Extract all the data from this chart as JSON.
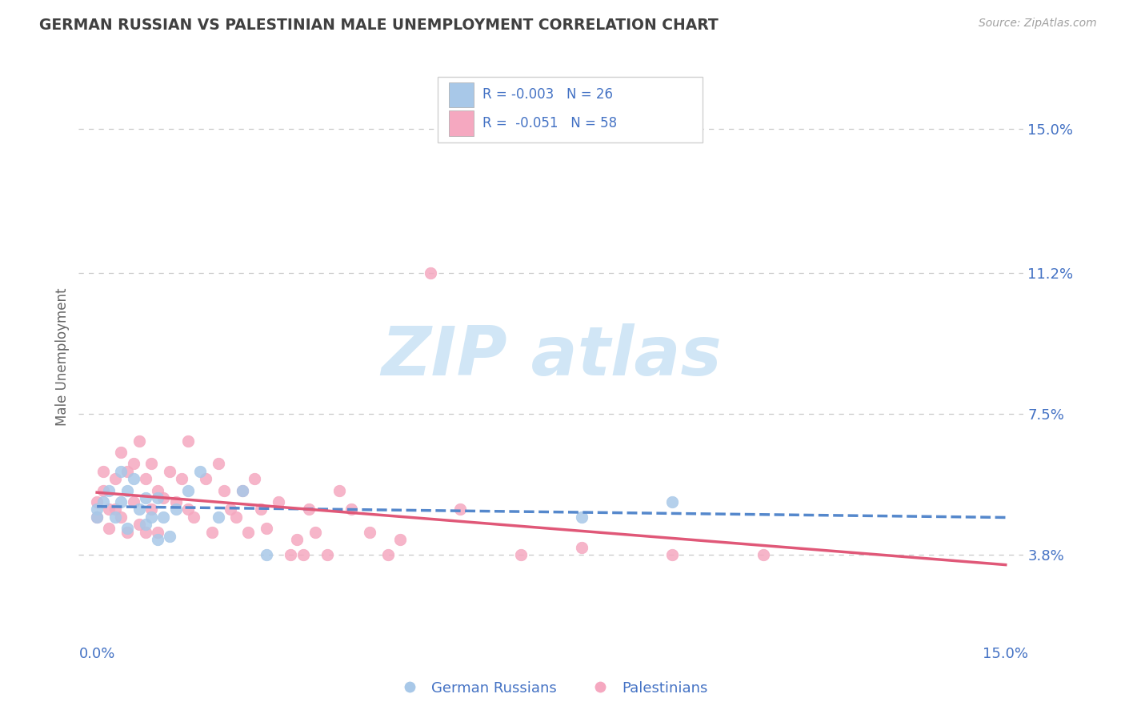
{
  "title": "GERMAN RUSSIAN VS PALESTINIAN MALE UNEMPLOYMENT CORRELATION CHART",
  "source_text": "Source: ZipAtlas.com",
  "ylabel": "Male Unemployment",
  "xlim": [
    -0.003,
    0.153
  ],
  "ylim": [
    0.015,
    0.165
  ],
  "yticks": [
    0.038,
    0.075,
    0.112,
    0.15
  ],
  "ytick_labels": [
    "3.8%",
    "7.5%",
    "11.2%",
    "15.0%"
  ],
  "xtick_vals": [
    0.0,
    0.15
  ],
  "xtick_labels": [
    "0.0%",
    "15.0%"
  ],
  "color_blue_scatter": "#a8c8e8",
  "color_pink_scatter": "#f5a8c0",
  "color_blue_line": "#5588cc",
  "color_pink_line": "#e05878",
  "color_axis_text": "#4472c4",
  "color_dashed_grid": "#c8c8c8",
  "color_title": "#404040",
  "color_source": "#a0a0a0",
  "watermark_color": "#cce4f5",
  "legend_box_color": "#f0f0f0",
  "gr_x": [
    0.0,
    0.0,
    0.001,
    0.002,
    0.003,
    0.004,
    0.004,
    0.005,
    0.005,
    0.006,
    0.007,
    0.008,
    0.008,
    0.009,
    0.01,
    0.01,
    0.011,
    0.012,
    0.013,
    0.015,
    0.017,
    0.02,
    0.024,
    0.028,
    0.08,
    0.095
  ],
  "gr_y": [
    0.05,
    0.048,
    0.052,
    0.055,
    0.048,
    0.06,
    0.052,
    0.055,
    0.045,
    0.058,
    0.05,
    0.053,
    0.046,
    0.048,
    0.042,
    0.053,
    0.048,
    0.043,
    0.05,
    0.055,
    0.06,
    0.048,
    0.055,
    0.038,
    0.048,
    0.052
  ],
  "pal_x": [
    0.0,
    0.0,
    0.001,
    0.001,
    0.002,
    0.002,
    0.003,
    0.003,
    0.004,
    0.004,
    0.005,
    0.005,
    0.006,
    0.006,
    0.007,
    0.007,
    0.008,
    0.008,
    0.009,
    0.009,
    0.01,
    0.01,
    0.011,
    0.012,
    0.013,
    0.014,
    0.015,
    0.015,
    0.016,
    0.018,
    0.019,
    0.02,
    0.021,
    0.022,
    0.023,
    0.024,
    0.025,
    0.026,
    0.027,
    0.028,
    0.03,
    0.032,
    0.033,
    0.034,
    0.035,
    0.036,
    0.038,
    0.04,
    0.042,
    0.045,
    0.048,
    0.05,
    0.055,
    0.06,
    0.07,
    0.08,
    0.095,
    0.11
  ],
  "pal_y": [
    0.052,
    0.048,
    0.055,
    0.06,
    0.05,
    0.045,
    0.058,
    0.05,
    0.065,
    0.048,
    0.06,
    0.044,
    0.062,
    0.052,
    0.068,
    0.046,
    0.058,
    0.044,
    0.062,
    0.05,
    0.055,
    0.044,
    0.053,
    0.06,
    0.052,
    0.058,
    0.05,
    0.068,
    0.048,
    0.058,
    0.044,
    0.062,
    0.055,
    0.05,
    0.048,
    0.055,
    0.044,
    0.058,
    0.05,
    0.045,
    0.052,
    0.038,
    0.042,
    0.038,
    0.05,
    0.044,
    0.038,
    0.055,
    0.05,
    0.044,
    0.038,
    0.042,
    0.112,
    0.05,
    0.038,
    0.04,
    0.038,
    0.038
  ]
}
